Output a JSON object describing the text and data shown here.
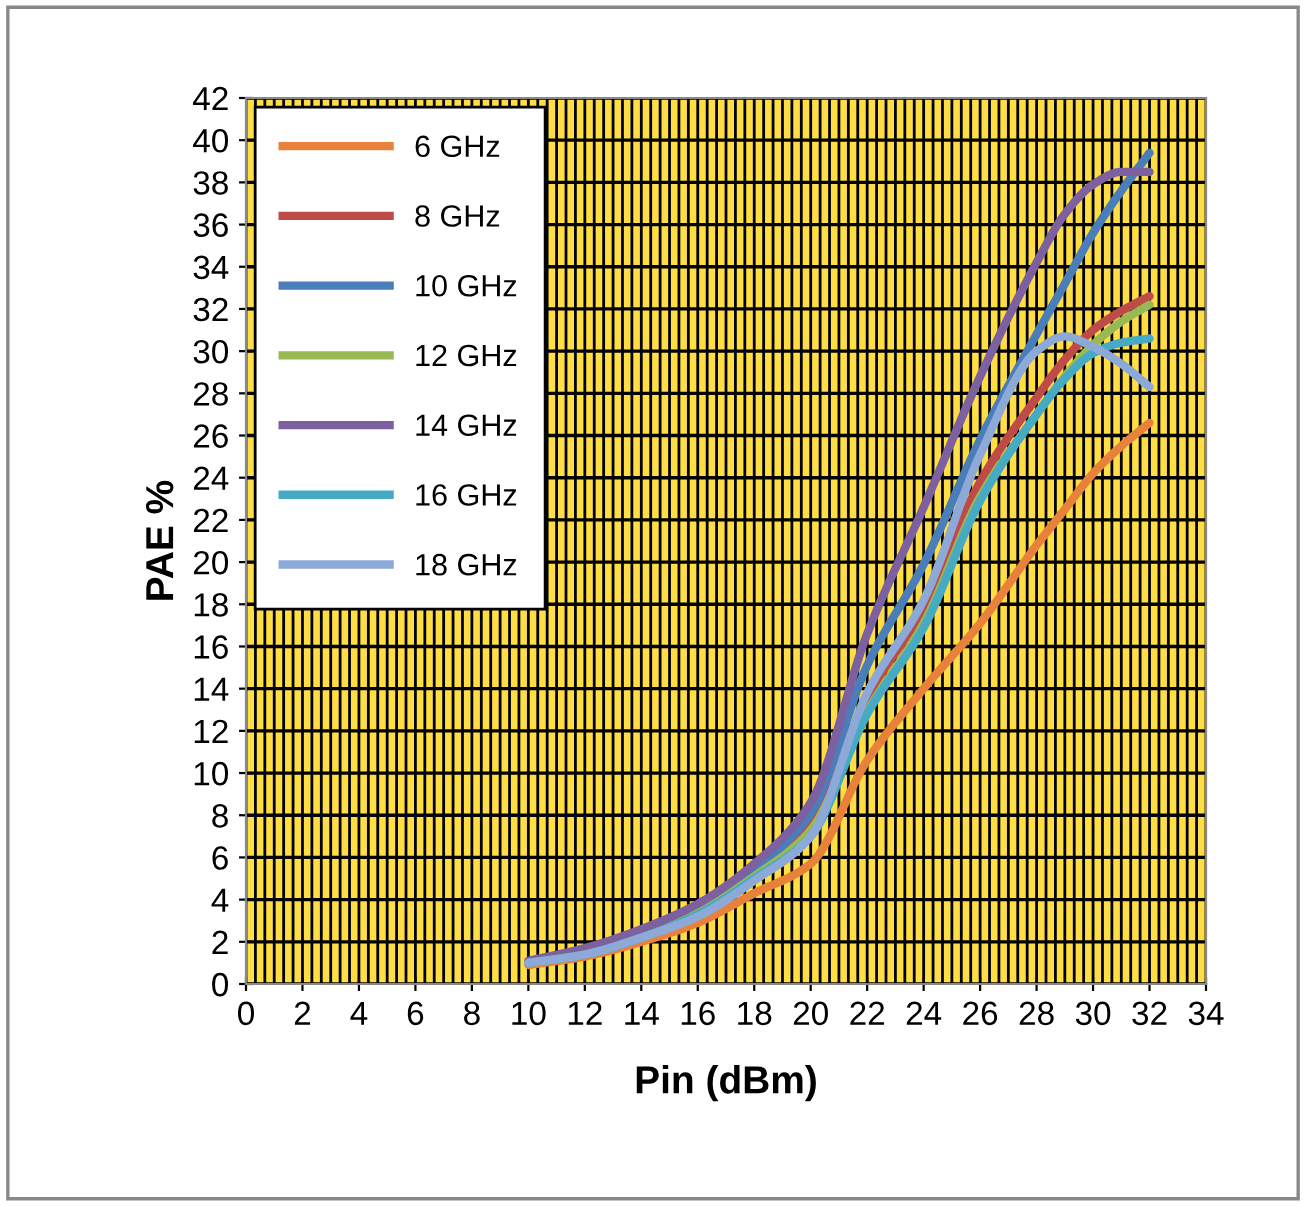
{
  "chart_data": {
    "type": "line",
    "xlabel": "Pin (dBm)",
    "ylabel": "PAE %",
    "x": [
      10,
      12,
      14,
      16,
      18,
      20,
      22,
      24,
      26,
      28,
      29,
      30,
      31,
      32
    ],
    "series": [
      {
        "name": "6 GHz",
        "color": "#e8823a",
        "values": [
          0.9,
          1.3,
          2.0,
          2.9,
          4.3,
          5.7,
          10.6,
          14.0,
          17.1,
          20.8,
          22.5,
          24.2,
          25.5,
          26.6
        ]
      },
      {
        "name": "8 GHz",
        "color": "#be4b48",
        "values": [
          1.0,
          1.5,
          2.3,
          3.5,
          5.3,
          7.7,
          13.6,
          17.8,
          23.8,
          27.8,
          29.6,
          31.0,
          31.9,
          32.6
        ]
      },
      {
        "name": "10 GHz",
        "color": "#4a7ebb",
        "values": [
          1.0,
          1.5,
          2.3,
          3.6,
          5.4,
          8.1,
          15.1,
          19.9,
          25.8,
          30.8,
          33.2,
          35.6,
          37.6,
          39.4
        ]
      },
      {
        "name": "12 GHz",
        "color": "#98b954",
        "values": [
          1.0,
          1.4,
          2.2,
          3.4,
          5.1,
          7.3,
          12.9,
          17.1,
          23.1,
          27.0,
          28.8,
          30.3,
          31.4,
          32.2
        ]
      },
      {
        "name": "14 GHz",
        "color": "#7d60a0",
        "values": [
          1.1,
          1.7,
          2.6,
          3.8,
          5.7,
          8.6,
          16.6,
          22.6,
          28.8,
          34.2,
          36.5,
          37.9,
          38.5,
          38.5
        ]
      },
      {
        "name": "16 GHz",
        "color": "#46aac5",
        "values": [
          1.0,
          1.4,
          2.2,
          3.3,
          5.0,
          7.0,
          12.8,
          16.9,
          22.9,
          27.0,
          28.7,
          29.9,
          30.4,
          30.6
        ]
      },
      {
        "name": "18 GHz",
        "color": "#8ca9d8",
        "values": [
          1.0,
          1.4,
          2.2,
          3.2,
          4.9,
          7.0,
          13.8,
          18.2,
          25.1,
          30.0,
          30.7,
          30.2,
          29.4,
          28.3
        ]
      }
    ],
    "xlim": [
      0,
      34
    ],
    "xticks": [
      0,
      2,
      4,
      6,
      8,
      10,
      12,
      14,
      16,
      18,
      20,
      22,
      24,
      26,
      28,
      30,
      32,
      34
    ],
    "ylim": [
      0,
      42
    ],
    "yticks": [
      0,
      2,
      4,
      6,
      8,
      10,
      12,
      14,
      16,
      18,
      20,
      22,
      24,
      26,
      28,
      30,
      32,
      34,
      36,
      38,
      40,
      42
    ],
    "grid": true,
    "legend": "top left",
    "marker": "none",
    "line_style": "solid"
  }
}
